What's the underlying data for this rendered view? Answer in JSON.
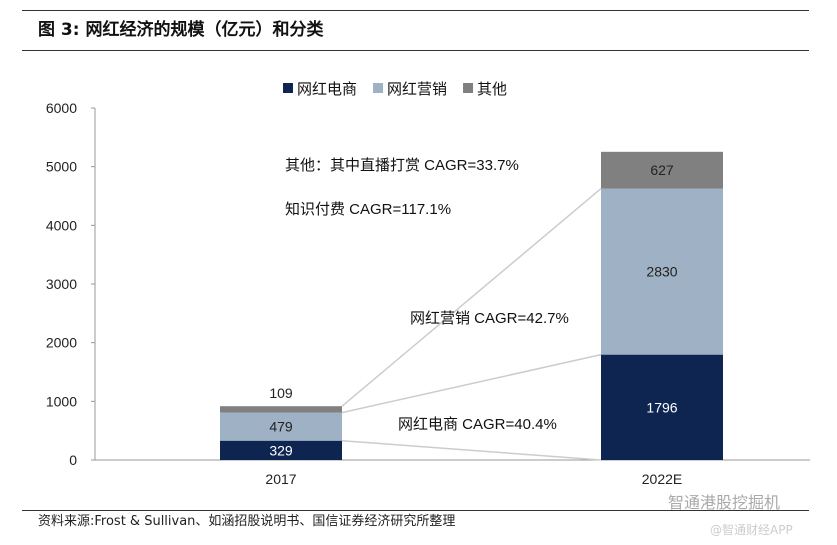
{
  "title": "图 3:  网红经济的规模（亿元）和分类",
  "source": "资料来源:Frost & Sullivan、如涵招股说明书、国信证券经济研究所整理",
  "watermark": {
    "line1": "智通港股挖掘机",
    "line2": "@智通财经APP"
  },
  "chart_data": {
    "type": "bar",
    "stacked": true,
    "title": "网红经济的规模（亿元）和分类",
    "categories": [
      "2017",
      "2022E"
    ],
    "series": [
      {
        "name": "网红电商",
        "color": "#0e2451",
        "values": [
          329,
          1796
        ]
      },
      {
        "name": "网红营销",
        "color": "#9fb1c5",
        "values": [
          479,
          2830
        ]
      },
      {
        "name": "其他",
        "color": "#808080",
        "values": [
          109,
          627
        ]
      }
    ],
    "ylim": [
      0,
      6000
    ],
    "yticks": [
      "0",
      "1000",
      "2000",
      "3000",
      "4000",
      "5000",
      "6000"
    ],
    "legend": "top",
    "annotations": [
      "其他：其中直播打赏 CAGR=33.7%",
      "知识付费 CAGR=117.1%",
      "网红营销 CAGR=42.7%",
      "网红电商 CAGR=40.4%"
    ]
  }
}
